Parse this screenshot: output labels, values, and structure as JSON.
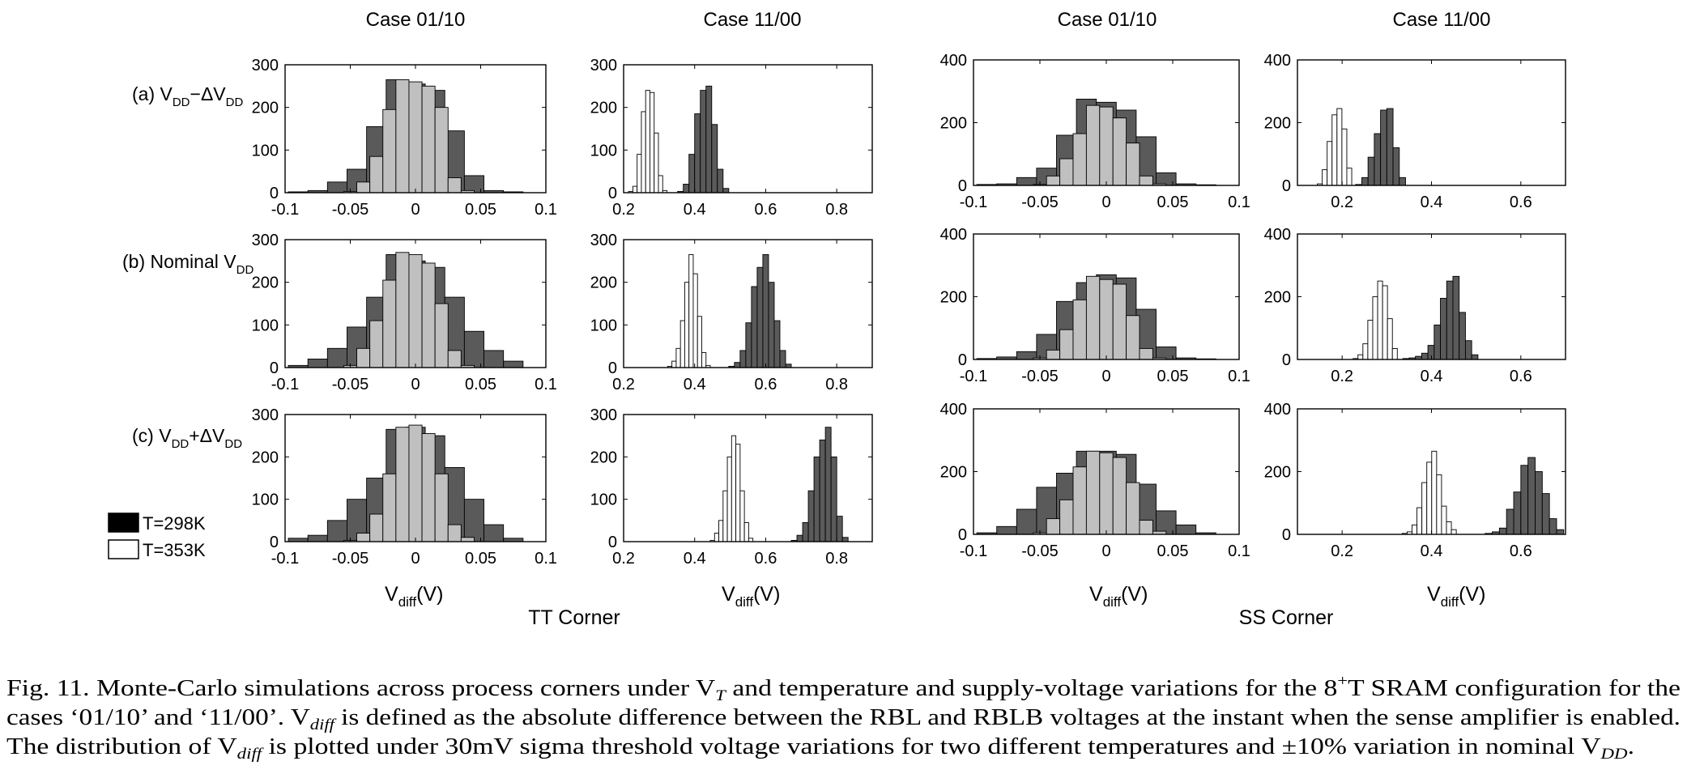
{
  "figure": {
    "tt_corner": "TT Corner",
    "ss_corner": "SS Corner",
    "col_titles": [
      "Case 01/10",
      "Case 11/00",
      "Case 01/10",
      "Case 11/00"
    ],
    "row_labels": [
      {
        "prefix": "(a) V",
        "sub1": "DD",
        "mid": "−ΔV",
        "sub2": "DD"
      },
      {
        "prefix": "(b) Nominal V",
        "sub1": "DD",
        "mid": "",
        "sub2": ""
      },
      {
        "prefix": "(c) V",
        "sub1": "DD",
        "mid": "+ΔV",
        "sub2": "DD"
      }
    ],
    "xlabel": {
      "main": "V",
      "sub": "diff",
      "unit": "(V)"
    },
    "legend": [
      {
        "label": "T=298K",
        "color": "#000000"
      },
      {
        "label": "T=353K",
        "color": "#ffffff"
      }
    ],
    "colors": {
      "t298": "#5a5a5a",
      "t353": "#ffffff",
      "overlap": "#c0c0c0"
    }
  },
  "caption": {
    "line1": "Fig. 11.   Monte-Carlo simulations across process corners under V",
    "line1_sub": "T",
    "line1_b": " and temperature and supply-voltage variations for the 8",
    "line1_sup": "+",
    "line1_c": "T SRAM configuration for the",
    "line2_a": "cases ‘01/10’ and ‘11/00’. V",
    "line2_sub": "diff",
    "line2_b": " is defined as the absolute difference between the RBL and RBLB voltages at the instant when the sense amplifier is enabled.",
    "line3_a": "The distribution of V",
    "line3_sub": "diff",
    "line3_b": " is plotted under 30mV sigma threshold voltage variations for two different temperatures and ±10% variation in nominal V",
    "line3_sub2": "DD",
    "line3_c": "."
  },
  "chart_data": [
    {
      "type": "bar",
      "id": "tt-a-0110",
      "corner": "TT",
      "case": "Case 01/10",
      "row": "(a)",
      "xlim": [
        -0.1,
        0.1
      ],
      "ylim": [
        0,
        300
      ],
      "xticks": [
        -0.1,
        -0.05,
        0,
        0.05,
        0.1
      ],
      "xtick_labels": [
        "-0.1",
        "-0.05",
        "0",
        "0.05",
        "0.1"
      ],
      "yticks": [
        0,
        100,
        200,
        300
      ],
      "series": [
        {
          "name": "T=298K",
          "bin_width": 0.015,
          "x": [
            -0.09,
            -0.075,
            -0.06,
            -0.045,
            -0.03,
            -0.015,
            0,
            0.015,
            0.03,
            0.045,
            0.06,
            0.075
          ],
          "values": [
            2,
            5,
            25,
            55,
            155,
            265,
            255,
            240,
            145,
            40,
            5,
            2
          ]
        },
        {
          "name": "T=353K",
          "bin_width": 0.01,
          "x": [
            -0.05,
            -0.04,
            -0.03,
            -0.02,
            -0.01,
            0,
            0.01,
            0.02,
            0.03,
            0.04
          ],
          "values": [
            3,
            25,
            85,
            195,
            265,
            260,
            250,
            200,
            35,
            5
          ]
        }
      ]
    },
    {
      "type": "bar",
      "id": "tt-a-1100",
      "corner": "TT",
      "case": "Case 11/00",
      "row": "(a)",
      "xlim": [
        0.2,
        0.9
      ],
      "ylim": [
        0,
        300
      ],
      "xticks": [
        0.2,
        0.4,
        0.6,
        0.8
      ],
      "xtick_labels": [
        "0.2",
        "0.4",
        "0.6",
        "0.8"
      ],
      "yticks": [
        0,
        100,
        200,
        300
      ],
      "series": [
        {
          "name": "T=298K",
          "bin_width": 0.016,
          "x": [
            0.36,
            0.376,
            0.392,
            0.408,
            0.424,
            0.44,
            0.456,
            0.472,
            0.488
          ],
          "values": [
            3,
            20,
            90,
            185,
            240,
            250,
            160,
            55,
            10
          ]
        },
        {
          "name": "T=353K",
          "bin_width": 0.012,
          "x": [
            0.22,
            0.232,
            0.244,
            0.256,
            0.268,
            0.28,
            0.292,
            0.304,
            0.316
          ],
          "values": [
            3,
            15,
            90,
            190,
            240,
            235,
            140,
            40,
            5
          ]
        }
      ]
    },
    {
      "type": "bar",
      "id": "tt-b-0110",
      "corner": "TT",
      "case": "Case 01/10",
      "row": "(b)",
      "xlim": [
        -0.1,
        0.1
      ],
      "ylim": [
        0,
        300
      ],
      "xticks": [
        -0.1,
        -0.05,
        0,
        0.05,
        0.1
      ],
      "xtick_labels": [
        "-0.1",
        "-0.05",
        "0",
        "0.05",
        "0.1"
      ],
      "yticks": [
        0,
        100,
        200,
        300
      ],
      "series": [
        {
          "name": "T=298K",
          "bin_width": 0.015,
          "x": [
            -0.09,
            -0.075,
            -0.06,
            -0.045,
            -0.03,
            -0.015,
            0,
            0.015,
            0.03,
            0.045,
            0.06,
            0.075
          ],
          "values": [
            5,
            20,
            45,
            95,
            165,
            265,
            250,
            235,
            165,
            85,
            40,
            15
          ]
        },
        {
          "name": "T=353K",
          "bin_width": 0.01,
          "x": [
            -0.05,
            -0.04,
            -0.03,
            -0.02,
            -0.01,
            0,
            0.01,
            0.02,
            0.03,
            0.04
          ],
          "values": [
            5,
            45,
            110,
            205,
            270,
            265,
            245,
            150,
            40,
            5
          ]
        }
      ]
    },
    {
      "type": "bar",
      "id": "tt-b-1100",
      "corner": "TT",
      "case": "Case 11/00",
      "row": "(b)",
      "xlim": [
        0.2,
        0.9
      ],
      "ylim": [
        0,
        300
      ],
      "xticks": [
        0.2,
        0.4,
        0.6,
        0.8
      ],
      "xtick_labels": [
        "0.2",
        "0.4",
        "0.6",
        "0.8"
      ],
      "yticks": [
        0,
        100,
        200,
        300
      ],
      "series": [
        {
          "name": "T=298K",
          "bin_width": 0.016,
          "x": [
            0.504,
            0.52,
            0.536,
            0.552,
            0.568,
            0.584,
            0.6,
            0.616,
            0.632,
            0.648,
            0.664
          ],
          "values": [
            3,
            12,
            40,
            105,
            190,
            235,
            265,
            200,
            110,
            40,
            8
          ]
        },
        {
          "name": "T=353K",
          "bin_width": 0.012,
          "x": [
            0.33,
            0.342,
            0.354,
            0.366,
            0.378,
            0.39,
            0.402,
            0.414,
            0.426,
            0.438
          ],
          "values": [
            3,
            15,
            45,
            110,
            200,
            265,
            220,
            120,
            35,
            5
          ]
        }
      ]
    },
    {
      "type": "bar",
      "id": "tt-c-0110",
      "corner": "TT",
      "case": "Case 01/10",
      "row": "(c)",
      "xlim": [
        -0.1,
        0.1
      ],
      "ylim": [
        0,
        300
      ],
      "xticks": [
        -0.1,
        -0.05,
        0,
        0.05,
        0.1
      ],
      "xtick_labels": [
        "-0.1",
        "-0.05",
        "0",
        "0.05",
        "0.1"
      ],
      "yticks": [
        0,
        100,
        200,
        300
      ],
      "series": [
        {
          "name": "T=298K",
          "bin_width": 0.015,
          "x": [
            -0.09,
            -0.075,
            -0.06,
            -0.045,
            -0.03,
            -0.015,
            0,
            0.015,
            0.03,
            0.045,
            0.06,
            0.075
          ],
          "values": [
            8,
            15,
            50,
            100,
            150,
            265,
            270,
            250,
            175,
            100,
            40,
            8
          ]
        },
        {
          "name": "T=353K",
          "bin_width": 0.01,
          "x": [
            -0.05,
            -0.04,
            -0.03,
            -0.02,
            -0.01,
            0,
            0.01,
            0.02,
            0.03,
            0.04
          ],
          "values": [
            3,
            20,
            65,
            160,
            270,
            275,
            255,
            160,
            40,
            10
          ]
        }
      ]
    },
    {
      "type": "bar",
      "id": "tt-c-1100",
      "corner": "TT",
      "case": "Case 11/00",
      "row": "(c)",
      "xlim": [
        0.2,
        0.9
      ],
      "ylim": [
        0,
        300
      ],
      "xticks": [
        0.2,
        0.4,
        0.6,
        0.8
      ],
      "xtick_labels": [
        "0.2",
        "0.4",
        "0.6",
        "0.8"
      ],
      "yticks": [
        0,
        100,
        200,
        300
      ],
      "series": [
        {
          "name": "T=298K",
          "bin_width": 0.016,
          "x": [
            0.68,
            0.696,
            0.712,
            0.728,
            0.744,
            0.76,
            0.776,
            0.792,
            0.808,
            0.824
          ],
          "values": [
            3,
            15,
            45,
            120,
            200,
            240,
            270,
            200,
            60,
            10
          ]
        },
        {
          "name": "T=353K",
          "bin_width": 0.012,
          "x": [
            0.45,
            0.462,
            0.474,
            0.486,
            0.498,
            0.51,
            0.522,
            0.534,
            0.546,
            0.558
          ],
          "values": [
            3,
            20,
            50,
            120,
            200,
            250,
            230,
            120,
            45,
            8
          ]
        }
      ]
    },
    {
      "type": "bar",
      "id": "ss-a-0110",
      "corner": "SS",
      "case": "Case 01/10",
      "row": "(a)",
      "xlim": [
        -0.1,
        0.1
      ],
      "ylim": [
        0,
        400
      ],
      "xticks": [
        -0.1,
        -0.05,
        0,
        0.05,
        0.1
      ],
      "xtick_labels": [
        "-0.1",
        "-0.05",
        "0",
        "0.05",
        "0.1"
      ],
      "yticks": [
        0,
        200,
        400
      ],
      "series": [
        {
          "name": "T=298K",
          "bin_width": 0.015,
          "x": [
            -0.09,
            -0.075,
            -0.06,
            -0.045,
            -0.03,
            -0.015,
            0,
            0.015,
            0.03,
            0.045,
            0.06,
            0.075
          ],
          "values": [
            3,
            5,
            25,
            55,
            160,
            275,
            265,
            240,
            155,
            40,
            5,
            2
          ]
        },
        {
          "name": "T=353K",
          "bin_width": 0.01,
          "x": [
            -0.05,
            -0.04,
            -0.03,
            -0.02,
            -0.01,
            0,
            0.01,
            0.02,
            0.03,
            0.04
          ],
          "values": [
            3,
            30,
            85,
            165,
            255,
            250,
            215,
            135,
            30,
            5
          ]
        }
      ]
    },
    {
      "type": "bar",
      "id": "ss-a-1100",
      "corner": "SS",
      "case": "Case 11/00",
      "row": "(a)",
      "xlim": [
        0.1,
        0.7
      ],
      "ylim": [
        0,
        400
      ],
      "xticks": [
        0.2,
        0.4,
        0.6
      ],
      "xtick_labels": [
        "0.2",
        "0.4",
        "0.6"
      ],
      "yticks": [
        0,
        200,
        400
      ],
      "series": [
        {
          "name": "T=298K",
          "bin_width": 0.014,
          "x": [
            0.237,
            0.251,
            0.265,
            0.279,
            0.293,
            0.307,
            0.321,
            0.335
          ],
          "values": [
            3,
            25,
            90,
            165,
            240,
            245,
            120,
            25
          ]
        },
        {
          "name": "T=353K",
          "bin_width": 0.011,
          "x": [
            0.15,
            0.161,
            0.172,
            0.183,
            0.194,
            0.205,
            0.216
          ],
          "values": [
            5,
            50,
            140,
            225,
            245,
            180,
            55
          ]
        }
      ]
    },
    {
      "type": "bar",
      "id": "ss-b-0110",
      "corner": "SS",
      "case": "Case 01/10",
      "row": "(b)",
      "xlim": [
        -0.1,
        0.1
      ],
      "ylim": [
        0,
        400
      ],
      "xticks": [
        -0.1,
        -0.05,
        0,
        0.05,
        0.1
      ],
      "xtick_labels": [
        "-0.1",
        "-0.05",
        "0",
        "0.05",
        "0.1"
      ],
      "yticks": [
        0,
        200,
        400
      ],
      "series": [
        {
          "name": "T=298K",
          "bin_width": 0.015,
          "x": [
            -0.09,
            -0.075,
            -0.06,
            -0.045,
            -0.03,
            -0.015,
            0,
            0.015,
            0.03,
            0.045,
            0.06,
            0.075
          ],
          "values": [
            3,
            8,
            25,
            80,
            185,
            245,
            270,
            260,
            160,
            40,
            5,
            2
          ]
        },
        {
          "name": "T=353K",
          "bin_width": 0.01,
          "x": [
            -0.05,
            -0.04,
            -0.03,
            -0.02,
            -0.01,
            0,
            0.01,
            0.02,
            0.03,
            0.04
          ],
          "values": [
            5,
            30,
            95,
            190,
            265,
            255,
            240,
            140,
            35,
            5
          ]
        }
      ]
    },
    {
      "type": "bar",
      "id": "ss-b-1100",
      "corner": "SS",
      "case": "Case 11/00",
      "row": "(b)",
      "xlim": [
        0.1,
        0.7
      ],
      "ylim": [
        0,
        400
      ],
      "xticks": [
        0.2,
        0.4,
        0.6
      ],
      "xtick_labels": [
        "0.2",
        "0.4",
        "0.6"
      ],
      "yticks": [
        0,
        200,
        400
      ],
      "series": [
        {
          "name": "T=298K",
          "bin_width": 0.014,
          "x": [
            0.343,
            0.357,
            0.371,
            0.385,
            0.399,
            0.413,
            0.427,
            0.441,
            0.455,
            0.469,
            0.483,
            0.497
          ],
          "values": [
            3,
            5,
            10,
            20,
            45,
            110,
            195,
            250,
            265,
            150,
            60,
            15
          ]
        },
        {
          "name": "T=353K",
          "bin_width": 0.011,
          "x": [
            0.23,
            0.241,
            0.252,
            0.263,
            0.274,
            0.285,
            0.296,
            0.307,
            0.318
          ],
          "values": [
            3,
            15,
            50,
            125,
            200,
            250,
            235,
            130,
            35
          ]
        }
      ]
    },
    {
      "type": "bar",
      "id": "ss-c-0110",
      "corner": "SS",
      "case": "Case 01/10",
      "row": "(c)",
      "xlim": [
        -0.1,
        0.1
      ],
      "ylim": [
        0,
        400
      ],
      "xticks": [
        -0.1,
        -0.05,
        0,
        0.05,
        0.1
      ],
      "xtick_labels": [
        "-0.1",
        "-0.05",
        "0",
        "0.05",
        "0.1"
      ],
      "yticks": [
        0,
        200,
        400
      ],
      "series": [
        {
          "name": "T=298K",
          "bin_width": 0.015,
          "x": [
            -0.09,
            -0.075,
            -0.06,
            -0.045,
            -0.03,
            -0.015,
            0,
            0.015,
            0.03,
            0.045,
            0.06,
            0.075
          ],
          "values": [
            5,
            25,
            80,
            150,
            195,
            265,
            265,
            255,
            160,
            75,
            30,
            5
          ]
        },
        {
          "name": "T=353K",
          "bin_width": 0.01,
          "x": [
            -0.05,
            -0.04,
            -0.03,
            -0.02,
            -0.01,
            0,
            0.01,
            0.02,
            0.03,
            0.04
          ],
          "values": [
            5,
            50,
            110,
            215,
            265,
            260,
            245,
            165,
            45,
            10
          ]
        }
      ]
    },
    {
      "type": "bar",
      "id": "ss-c-1100",
      "corner": "SS",
      "case": "Case 11/00",
      "row": "(c)",
      "xlim": [
        0.1,
        0.7
      ],
      "ylim": [
        0,
        400
      ],
      "xticks": [
        0.2,
        0.4,
        0.6
      ],
      "xtick_labels": [
        "0.2",
        "0.4",
        "0.6"
      ],
      "yticks": [
        0,
        200,
        400
      ],
      "series": [
        {
          "name": "T=298K",
          "bin_width": 0.016,
          "x": [
            0.528,
            0.544,
            0.56,
            0.576,
            0.592,
            0.608,
            0.624,
            0.64,
            0.656,
            0.672,
            0.688
          ],
          "values": [
            3,
            8,
            20,
            80,
            135,
            220,
            245,
            200,
            130,
            50,
            15
          ]
        },
        {
          "name": "T=353K",
          "bin_width": 0.011,
          "x": [
            0.34,
            0.351,
            0.362,
            0.373,
            0.384,
            0.395,
            0.406,
            0.417,
            0.428,
            0.439,
            0.45
          ],
          "values": [
            3,
            8,
            30,
            85,
            165,
            230,
            265,
            190,
            90,
            40,
            15
          ]
        }
      ]
    }
  ]
}
